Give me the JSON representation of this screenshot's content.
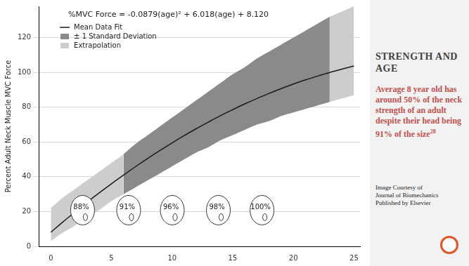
{
  "chart_data": {
    "type": "line",
    "title": "%MVC Force = -0.0879(age)² + 6.018(age) + 8.120",
    "y_label": "Percent Adult Neck Muscle MVC Force",
    "x": [
      0,
      1,
      2,
      3,
      4,
      5,
      6,
      7,
      8,
      9,
      10,
      11,
      12,
      13,
      14,
      15,
      16,
      17,
      18,
      19,
      20,
      21,
      22,
      23,
      24,
      25
    ],
    "series": [
      {
        "name": "Mean Data Fit",
        "type": "line",
        "color": "#1a1a1a",
        "values": [
          8.1,
          14.1,
          19.8,
          25.4,
          30.8,
          36.0,
          41.0,
          45.9,
          50.6,
          55.1,
          59.5,
          63.7,
          67.7,
          71.5,
          75.2,
          78.6,
          81.9,
          85.0,
          87.9,
          90.7,
          93.3,
          95.7,
          97.9,
          100.0,
          101.9,
          103.7
        ]
      },
      {
        "name": "± 1 Standard Deviation",
        "type": "band",
        "color": "#8a8a8a",
        "upper": [
          22,
          28,
          33,
          38,
          43,
          48,
          53,
          59,
          64,
          69,
          74,
          79,
          84,
          89,
          94,
          99,
          103,
          108,
          112,
          116,
          120,
          124,
          128,
          132,
          135,
          138
        ],
        "lower": [
          3,
          8,
          12,
          17,
          21,
          26,
          30,
          34,
          38,
          42,
          46,
          50,
          54,
          57,
          61,
          64,
          67,
          70,
          72,
          75,
          77,
          79,
          81,
          83,
          85,
          87
        ]
      }
    ],
    "extrapolation": {
      "name": "Extrapolation",
      "color": "#cdcdcd",
      "ranges": [
        [
          0,
          6
        ],
        [
          23,
          25
        ]
      ]
    },
    "annotations": [
      {
        "x": 2.5,
        "y": 20,
        "text": "88%"
      },
      {
        "x": 6.3,
        "y": 20,
        "text": "91%"
      },
      {
        "x": 9.9,
        "y": 20,
        "text": "96%"
      },
      {
        "x": 13.7,
        "y": 20,
        "text": "98%"
      },
      {
        "x": 17.3,
        "y": 20,
        "text": "100%"
      }
    ],
    "xlim": [
      -1,
      25.5
    ],
    "xticks": [
      0,
      5,
      10,
      15,
      20,
      25
    ],
    "ylim": [
      0,
      138
    ],
    "yticks": [
      0,
      20,
      40,
      60,
      80,
      100,
      120
    ],
    "grid": true,
    "legend": "top-left"
  },
  "side_panel": {
    "heading": "STRENGTH AND AGE",
    "text": "Average 8 year old has around 50% of the neck strength of an adult despite their head being 91% of the size",
    "reference": "28",
    "credit": [
      "Image Courtesy of",
      "Journal of Biomechanics",
      "Published by Elsevier"
    ]
  }
}
